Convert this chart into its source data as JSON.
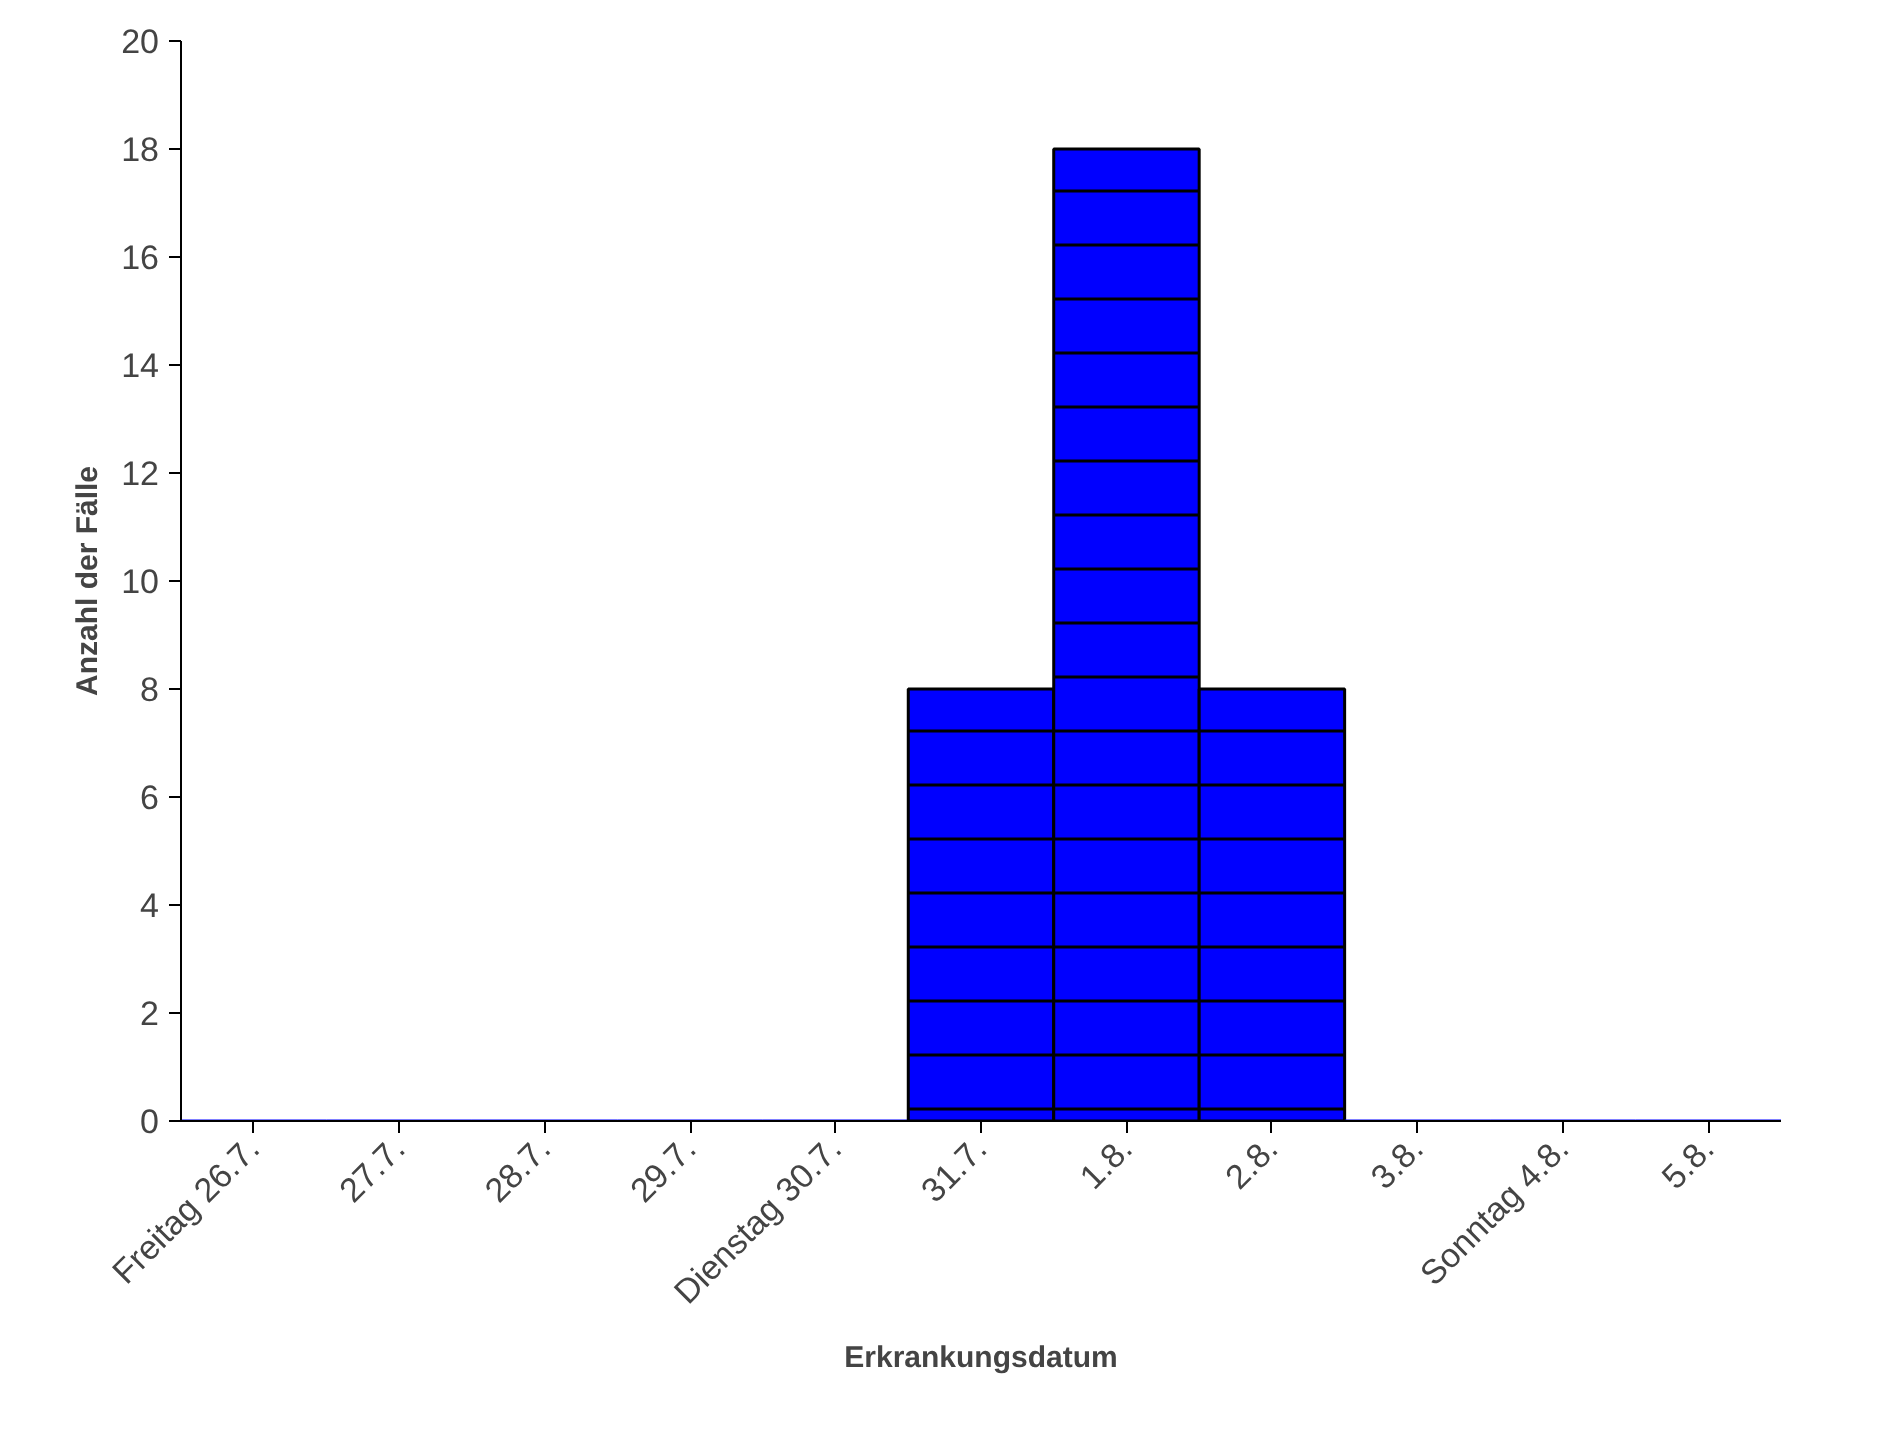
{
  "chart_data": {
    "type": "bar",
    "xlabel": "Erkrankungsdatum",
    "ylabel": "Anzahl der Fälle",
    "categories": [
      "Freitag 26.7.",
      "27.7.",
      "28.7.",
      "29.7.",
      "Dienstag 30.7.",
      "31.7.",
      "1.8.",
      "2.8.",
      "3.8.",
      "Sonntag 4.8.",
      "5.8."
    ],
    "values": [
      0,
      0,
      0,
      0,
      0,
      8,
      18,
      8,
      0,
      0,
      0
    ],
    "color": "#0000ff",
    "ylim": [
      0,
      20
    ],
    "yticks": [
      0,
      2,
      4,
      6,
      8,
      10,
      12,
      14,
      16,
      18,
      20
    ],
    "grid": false
  }
}
